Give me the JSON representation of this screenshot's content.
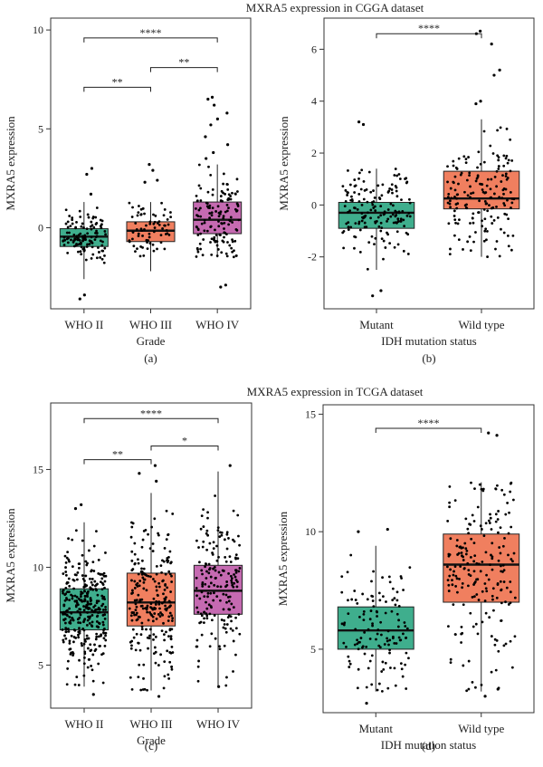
{
  "figure": {
    "datasets": [
      {
        "title": "MXRA5 expression in CGGA dataset"
      },
      {
        "title": "MXRA5 expression in TCGA dataset"
      }
    ]
  },
  "chart_data": [
    {
      "type": "box",
      "panel_tag": "(a)",
      "xlabel": "Grade",
      "ylabel": "MXRA5 expression",
      "ylim": [
        -4.1,
        10.6
      ],
      "yticks": [
        0,
        5,
        10
      ],
      "categories": [
        "WHO II",
        "WHO III",
        "WHO IV"
      ],
      "boxes": [
        {
          "category": "WHO II",
          "min": -2.6,
          "q1": -0.95,
          "median": -0.45,
          "q3": -0.05,
          "max": 1.3,
          "color": "#3fae8d",
          "n_points": 120
        },
        {
          "category": "WHO III",
          "min": -2.2,
          "q1": -0.7,
          "median": -0.15,
          "q3": 0.3,
          "max": 1.3,
          "color": "#f07f5f",
          "n_points": 70
        },
        {
          "category": "WHO IV",
          "min": -1.5,
          "q1": -0.3,
          "median": 0.4,
          "q3": 1.3,
          "max": 3.2,
          "color": "#c56ab1",
          "n_points": 140
        }
      ],
      "outliers": [
        [
          0,
          -3.6
        ],
        [
          0,
          -3.4
        ],
        [
          0,
          3.0
        ],
        [
          0,
          2.7
        ],
        [
          0,
          1.7
        ],
        [
          1,
          3.2
        ],
        [
          1,
          2.9
        ],
        [
          1,
          2.4
        ],
        [
          1,
          2.3
        ],
        [
          2,
          6.6
        ],
        [
          2,
          6.5
        ],
        [
          2,
          6.2
        ],
        [
          2,
          5.8
        ],
        [
          2,
          5.5
        ],
        [
          2,
          5.2
        ],
        [
          2,
          4.6
        ],
        [
          2,
          4.2
        ],
        [
          2,
          3.8
        ],
        [
          2,
          3.5
        ],
        [
          2,
          -2.9
        ],
        [
          2,
          -3.0
        ]
      ],
      "significance": [
        {
          "from": 0,
          "to": 2,
          "label": "****",
          "y": 9.6
        },
        {
          "from": 1,
          "to": 2,
          "label": "**",
          "y": 8.1
        },
        {
          "from": 0,
          "to": 1,
          "label": "**",
          "y": 7.1
        }
      ]
    },
    {
      "type": "box",
      "panel_tag": "(b)",
      "xlabel": "IDH mutation status",
      "ylabel": "MXRA5 expression",
      "ylim": [
        -4.0,
        7.2
      ],
      "yticks": [
        -2,
        0,
        2,
        4,
        6
      ],
      "categories": [
        "Mutant",
        "Wild type"
      ],
      "boxes": [
        {
          "category": "Mutant",
          "min": -2.5,
          "q1": -0.9,
          "median": -0.3,
          "q3": 0.1,
          "max": 1.4,
          "color": "#3fae8d",
          "n_points": 160
        },
        {
          "category": "Wild type",
          "min": -2.0,
          "q1": -0.15,
          "median": 0.25,
          "q3": 1.3,
          "max": 3.3,
          "color": "#f07f5f",
          "n_points": 170
        }
      ],
      "outliers": [
        [
          0,
          3.2
        ],
        [
          0,
          3.1
        ],
        [
          0,
          -3.3
        ],
        [
          0,
          -3.5
        ],
        [
          1,
          6.7
        ],
        [
          1,
          6.6
        ],
        [
          1,
          6.2
        ],
        [
          1,
          5.2
        ],
        [
          1,
          5.0
        ],
        [
          1,
          4.0
        ],
        [
          1,
          3.9
        ]
      ],
      "significance": [
        {
          "from": 0,
          "to": 1,
          "label": "****",
          "y": 6.6
        }
      ]
    },
    {
      "type": "box",
      "panel_tag": "(c)",
      "xlabel": "Grade",
      "ylabel": "MXRA5 expression",
      "ylim": [
        2.8,
        18.4
      ],
      "yticks": [
        5,
        10,
        15
      ],
      "categories": [
        "WHO II",
        "WHO III",
        "WHO IV"
      ],
      "boxes": [
        {
          "category": "WHO II",
          "min": 3.9,
          "q1": 6.8,
          "median": 7.7,
          "q3": 8.9,
          "max": 12.3,
          "color": "#3fae8d",
          "n_points": 320
        },
        {
          "category": "WHO III",
          "min": 3.7,
          "q1": 7.0,
          "median": 8.2,
          "q3": 9.7,
          "max": 13.8,
          "color": "#f07f5f",
          "n_points": 240
        },
        {
          "category": "WHO IV",
          "min": 3.9,
          "q1": 7.6,
          "median": 8.8,
          "q3": 10.1,
          "max": 14.9,
          "color": "#c56ab1",
          "n_points": 180
        }
      ],
      "outliers": [
        [
          0,
          13.2
        ],
        [
          0,
          13.0
        ],
        [
          0,
          3.5
        ],
        [
          1,
          15.2
        ],
        [
          1,
          14.8
        ],
        [
          1,
          14.4
        ],
        [
          1,
          3.4
        ],
        [
          2,
          15.2
        ],
        [
          2,
          3.9
        ]
      ],
      "significance": [
        {
          "from": 0,
          "to": 2,
          "label": "****",
          "y": 17.6
        },
        {
          "from": 1,
          "to": 2,
          "label": "*",
          "y": 16.2
        },
        {
          "from": 0,
          "to": 1,
          "label": "**",
          "y": 15.5
        }
      ]
    },
    {
      "type": "box",
      "panel_tag": "(d)",
      "xlabel": "IDH mutation status",
      "ylabel": "MXRA5 expression",
      "ylim": [
        2.3,
        15.4
      ],
      "yticks": [
        5,
        10,
        15
      ],
      "categories": [
        "Mutant",
        "Wild type"
      ],
      "boxes": [
        {
          "category": "Mutant",
          "min": 3.2,
          "q1": 5.0,
          "median": 5.8,
          "q3": 6.8,
          "max": 9.4,
          "color": "#3fae8d",
          "n_points": 130
        },
        {
          "category": "Wild type",
          "min": 3.2,
          "q1": 7.0,
          "median": 8.6,
          "q3": 9.9,
          "max": 12.1,
          "color": "#f07f5f",
          "n_points": 200
        }
      ],
      "outliers": [
        [
          0,
          10.1
        ],
        [
          0,
          10.0
        ],
        [
          0,
          2.7
        ],
        [
          1,
          14.2
        ],
        [
          1,
          14.1
        ],
        [
          1,
          3.3
        ],
        [
          1,
          3.0
        ]
      ],
      "significance": [
        {
          "from": 0,
          "to": 1,
          "label": "****",
          "y": 14.4
        }
      ]
    }
  ]
}
